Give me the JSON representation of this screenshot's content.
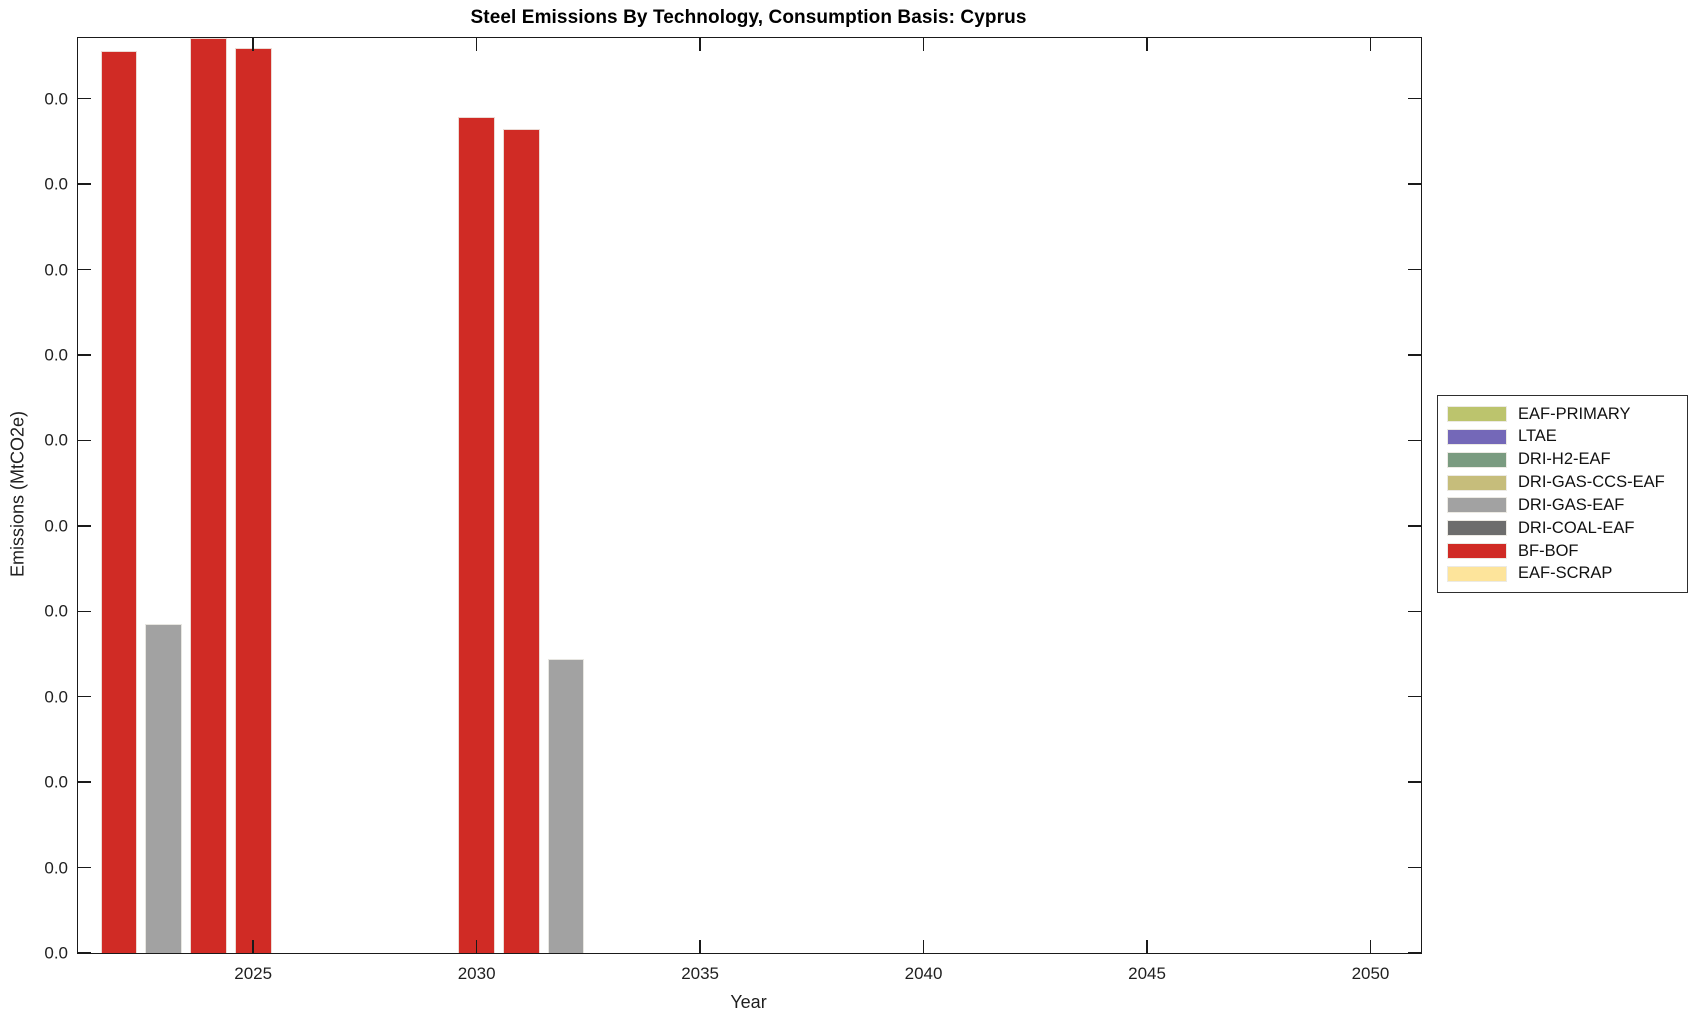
{
  "chart_data": {
    "type": "bar",
    "title": "Steel Emissions By Technology, Consumption Basis: Cyprus",
    "xlabel": "Year",
    "ylabel": "Emissions (MtCO2e)",
    "xlim": [
      2021.08,
      2051.13
    ],
    "ylim": [
      0,
      1.071
    ],
    "value_scale": "relative to y-axis ticks (every y tick label displays 0.0)",
    "x_ticks": [
      2025,
      2030,
      2035,
      2040,
      2045,
      2050
    ],
    "y_tick_labels": [
      "0.0",
      "0.0",
      "0.0",
      "0.0",
      "0.0",
      "0.0",
      "0.0",
      "0.0",
      "0.0",
      "0.0",
      "0.0"
    ],
    "y_tick_step": 0.1,
    "grid": false,
    "bar_width_years": 0.82,
    "bars": [
      {
        "year": 2022,
        "technology": "BF-BOF",
        "value": 1.056
      },
      {
        "year": 2023,
        "technology": "DRI-GAS-EAF",
        "value": 0.385
      },
      {
        "year": 2024,
        "technology": "BF-BOF",
        "value": 1.071
      },
      {
        "year": 2025,
        "technology": "BF-BOF",
        "value": 1.059
      },
      {
        "year": 2030,
        "technology": "BF-BOF",
        "value": 0.979
      },
      {
        "year": 2031,
        "technology": "BF-BOF",
        "value": 0.965
      },
      {
        "year": 2032,
        "technology": "DRI-GAS-EAF",
        "value": 0.344
      }
    ],
    "legend": {
      "position": "outside-right",
      "entries": [
        {
          "label": "EAF-PRIMARY",
          "color": "#bcc46d"
        },
        {
          "label": "LTAE",
          "color": "#7468b8"
        },
        {
          "label": "DRI-H2-EAF",
          "color": "#7a9b80"
        },
        {
          "label": "DRI-GAS-CCS-EAF",
          "color": "#c6bd7b"
        },
        {
          "label": "DRI-GAS-EAF",
          "color": "#a2a2a2"
        },
        {
          "label": "DRI-COAL-EAF",
          "color": "#6d6d6d"
        },
        {
          "label": "BF-BOF",
          "color": "#d02b25"
        },
        {
          "label": "EAF-SCRAP",
          "color": "#fde49b"
        }
      ]
    },
    "colors": {
      "axis": "#1a1a1a",
      "background": "#ffffff"
    }
  }
}
